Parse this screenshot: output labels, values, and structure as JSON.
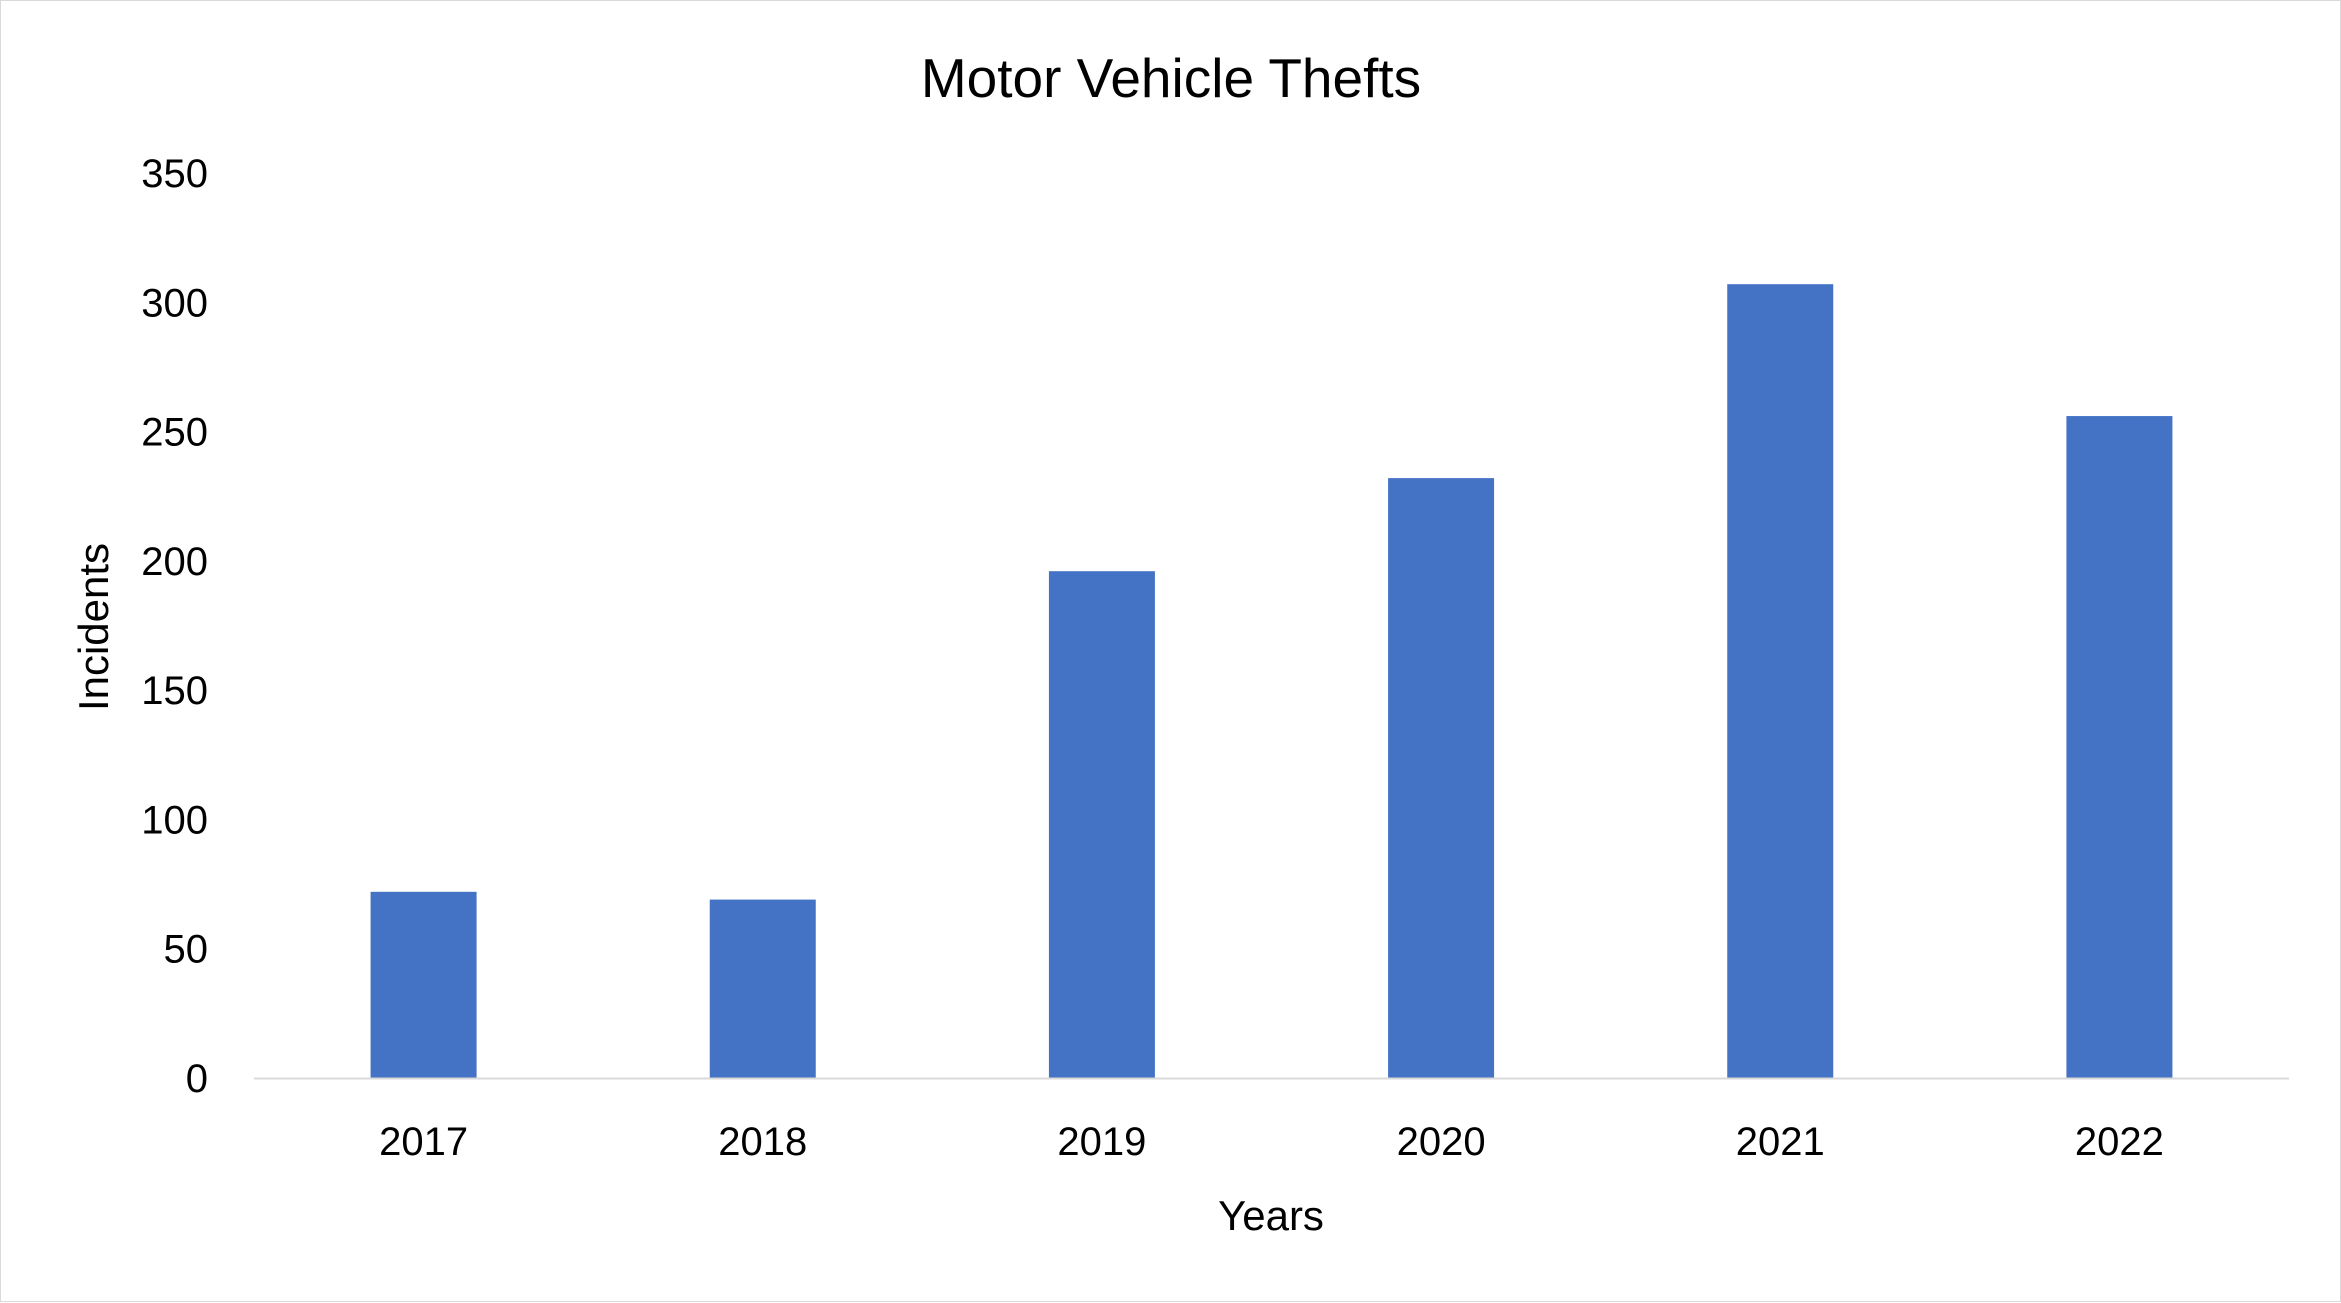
{
  "chart_data": {
    "type": "bar",
    "title": "Motor Vehicle Thefts",
    "xlabel": "Years",
    "ylabel": "Incidents",
    "categories": [
      "2017",
      "2018",
      "2019",
      "2020",
      "2021",
      "2022"
    ],
    "series": [
      {
        "values": [
          72,
          69,
          196,
          232,
          307,
          256
        ]
      }
    ],
    "ylim": [
      0,
      350
    ],
    "yticks": [
      0,
      50,
      100,
      150,
      200,
      250,
      300,
      350
    ],
    "grid": false,
    "legend": "none",
    "bar_color": "#4472c4",
    "axis_color": "#d9d9d9"
  }
}
